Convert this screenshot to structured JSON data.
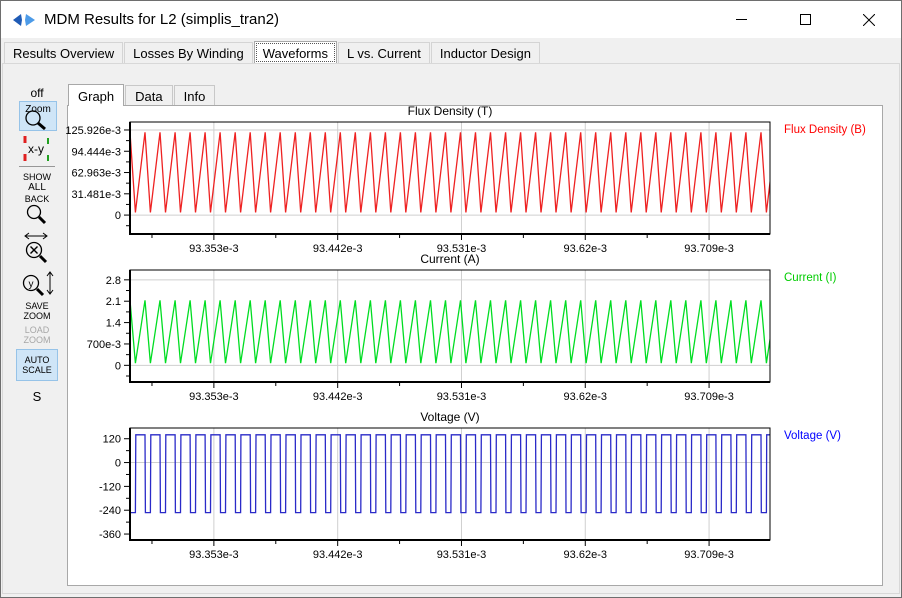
{
  "window": {
    "title": "MDM Results for L2 (simplis_tran2)"
  },
  "icons": {
    "app_logo": "left-right blue arrows",
    "minimize": "—",
    "maximize": "□",
    "close": "✕",
    "magnifier": "🔍"
  },
  "tabs": [
    {
      "label": "Results Overview"
    },
    {
      "label": "Losses By Winding"
    },
    {
      "label": "Waveforms"
    },
    {
      "label": "L vs. Current"
    },
    {
      "label": "Inductor Design"
    }
  ],
  "active_tab": "Waveforms",
  "subtabs": [
    "Graph",
    "Data",
    "Info"
  ],
  "active_subtab": "Graph",
  "toolbar": {
    "off": "off",
    "zoom": "Zoom",
    "xy": "x-y",
    "show_all": [
      "SHOW",
      "ALL"
    ],
    "back": "BACK",
    "zoom_y_glyph": "y",
    "save_zoom": [
      "SAVE",
      "ZOOM"
    ],
    "load_zoom": [
      "LOAD",
      "ZOOM"
    ],
    "auto_scale": [
      "AUTO",
      "SCALE"
    ],
    "s": "S"
  },
  "chart_data": [
    {
      "type": "line",
      "title": "Flux Density (T)",
      "right_label": "Flux Density (B)",
      "color": "#ee2222",
      "label_color": "#ff0000",
      "x_ticks": [
        {
          "label": "93.353e-3",
          "v": 0.093353
        },
        {
          "label": "93.442e-3",
          "v": 0.093442
        },
        {
          "label": "93.531e-3",
          "v": 0.093531
        },
        {
          "label": "93.62e-3",
          "v": 0.09362
        },
        {
          "label": "93.709e-3",
          "v": 0.093709
        }
      ],
      "x_range": [
        0.0932927,
        0.0937528
      ],
      "y_ticks": [
        {
          "label": "125.926e-3",
          "v": 0.125926
        },
        {
          "label": "94.444e-3",
          "v": 0.094444
        },
        {
          "label": "62.963e-3",
          "v": 0.062963
        },
        {
          "label": "31.481e-3",
          "v": 0.031481
        },
        {
          "label": "0",
          "v": 0
        }
      ],
      "y_range": [
        -0.028,
        0.13773
      ],
      "y_grid": [
        0,
        0.125926
      ],
      "waveform": {
        "shape": "triangle",
        "period": 1.08e-05,
        "rise_frac": 0.64,
        "min": 0.004,
        "max": 0.1225
      }
    },
    {
      "type": "line",
      "title": "Current (A)",
      "right_label": "Current (I)",
      "color": "#00dd22",
      "label_color": "#00cc00",
      "x_ticks": [
        {
          "label": "93.353e-3",
          "v": 0.093353
        },
        {
          "label": "93.442e-3",
          "v": 0.093442
        },
        {
          "label": "93.531e-3",
          "v": 0.093531
        },
        {
          "label": "93.62e-3",
          "v": 0.09362
        },
        {
          "label": "93.709e-3",
          "v": 0.093709
        }
      ],
      "x_range": [
        0.0932927,
        0.0937528
      ],
      "y_ticks": [
        {
          "label": "2.8",
          "v": 2.8
        },
        {
          "label": "2.1",
          "v": 2.1
        },
        {
          "label": "1.4",
          "v": 1.4
        },
        {
          "label": "700e-3",
          "v": 0.7
        },
        {
          "label": "0",
          "v": 0
        }
      ],
      "y_range": [
        -0.546,
        3.122
      ],
      "y_grid": [
        0,
        2.8
      ],
      "waveform": {
        "shape": "triangle",
        "period": 1.08e-05,
        "rise_frac": 0.64,
        "min": 0.07,
        "max": 2.13
      }
    },
    {
      "type": "line",
      "title": "Voltage (V)",
      "right_label": "Voltage (V)",
      "color": "#2a2ac8",
      "label_color": "#0000ff",
      "x_ticks": [
        {
          "label": "93.353e-3",
          "v": 0.093353
        },
        {
          "label": "93.442e-3",
          "v": 0.093442
        },
        {
          "label": "93.531e-3",
          "v": 0.093531
        },
        {
          "label": "93.62e-3",
          "v": 0.09362
        },
        {
          "label": "93.709e-3",
          "v": 0.093709
        }
      ],
      "x_range": [
        0.0932927,
        0.0937528
      ],
      "y_ticks": [
        {
          "label": "120",
          "v": 120
        },
        {
          "label": "0",
          "v": 0
        },
        {
          "label": "-120",
          "v": -120
        },
        {
          "label": "-240",
          "v": -240
        },
        {
          "label": "-360",
          "v": -360
        }
      ],
      "y_range": [
        -390,
        174
      ],
      "y_grid": [
        0
      ],
      "waveform": {
        "shape": "square",
        "period": 1.08e-05,
        "high_frac": 0.64,
        "high": 140,
        "low": -252
      }
    }
  ]
}
